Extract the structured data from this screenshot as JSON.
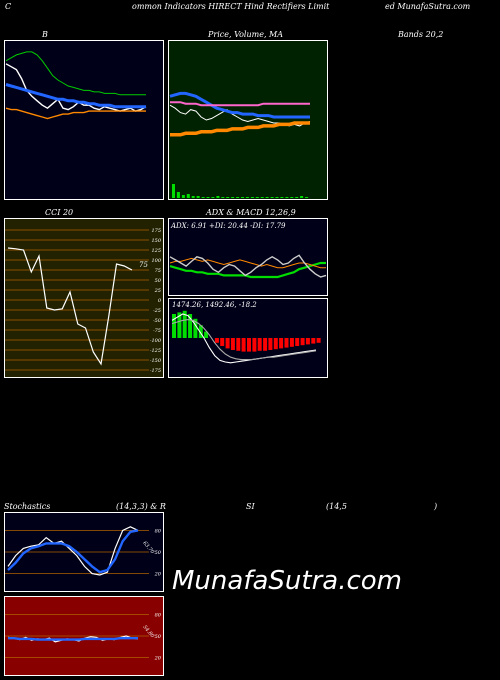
{
  "header": {
    "left": "C",
    "center": "ommon  Indicators HIRECT Hind Rectifiers Limit",
    "right": "ed MunafaSutra.com"
  },
  "watermark": "MunafaSutra.com",
  "colors": {
    "panel_dark": "#000018",
    "panel_green": "#002200",
    "panel_olive": "#222200",
    "panel_red": "#880000",
    "grid_orange": "#b06000",
    "white": "#ffffff",
    "blue": "#2266ff",
    "green": "#00dd00",
    "orange": "#ff8800",
    "pink": "#ff66cc"
  },
  "chart_data": [
    {
      "id": "bollinger",
      "type": "line",
      "title": "B",
      "right_title": "Bands 20,2",
      "series": [
        {
          "color": "#ffffff",
          "values": [
            88,
            86,
            84,
            78,
            70,
            66,
            63,
            60,
            58,
            61,
            64,
            58,
            57,
            59,
            62,
            60,
            60,
            58,
            57,
            59,
            58,
            57,
            56,
            57,
            58,
            56,
            57,
            59
          ]
        },
        {
          "color": "#2266ff",
          "values": [
            74,
            73,
            72,
            71,
            70,
            69,
            68,
            67,
            66,
            65,
            64,
            64,
            63,
            63,
            62,
            62,
            61,
            61,
            60,
            60,
            60,
            59,
            59,
            59,
            59,
            59,
            59,
            59
          ]
        },
        {
          "color": "#00cc00",
          "values": [
            90,
            92,
            94,
            95,
            96,
            96,
            94,
            90,
            85,
            80,
            77,
            75,
            73,
            72,
            71,
            70,
            70,
            69,
            69,
            68,
            68,
            68,
            67,
            67,
            67,
            67,
            67,
            67
          ]
        },
        {
          "color": "#ff8800",
          "values": [
            58,
            57,
            57,
            56,
            55,
            54,
            53,
            52,
            51,
            52,
            53,
            54,
            54,
            55,
            55,
            55,
            56,
            56,
            56,
            56,
            56,
            56,
            56,
            56,
            56,
            56,
            56,
            56
          ]
        }
      ]
    },
    {
      "id": "price_ma",
      "type": "line",
      "title": "Price,  Volume,  MA",
      "subtitle": "Volume",
      "series": [
        {
          "color": "#ffffff",
          "values": [
            60,
            58,
            55,
            54,
            57,
            56,
            52,
            50,
            51,
            53,
            55,
            57,
            54,
            52,
            50,
            49,
            50,
            51,
            50,
            49,
            48,
            48,
            47,
            46,
            47,
            46,
            48,
            49
          ]
        },
        {
          "color": "#2266ff",
          "values": [
            66,
            67,
            68,
            68,
            67,
            66,
            64,
            62,
            60,
            58,
            57,
            56,
            55,
            55,
            54,
            54,
            54,
            53,
            53,
            53,
            52,
            52,
            52,
            52,
            52,
            52,
            52,
            52
          ]
        },
        {
          "color": "#ff66cc",
          "values": [
            62,
            62,
            62,
            61,
            61,
            61,
            60,
            60,
            60,
            60,
            60,
            60,
            60,
            60,
            60,
            60,
            60,
            60,
            61,
            61,
            61,
            61,
            61,
            61,
            61,
            61,
            61,
            61
          ]
        },
        {
          "color": "#ff8800",
          "values": [
            40,
            40,
            40,
            41,
            41,
            41,
            42,
            42,
            42,
            43,
            43,
            43,
            44,
            44,
            44,
            45,
            45,
            45,
            46,
            46,
            46,
            47,
            47,
            47,
            48,
            48,
            48,
            48
          ]
        }
      ],
      "volume": [
        14,
        6,
        3,
        4,
        2,
        2,
        1,
        1,
        1,
        2,
        1,
        1,
        1,
        1,
        1,
        1,
        1,
        1,
        1,
        1,
        1,
        1,
        1,
        1,
        1,
        1,
        2,
        1
      ]
    },
    {
      "id": "cci",
      "type": "line",
      "title": "CCI 20",
      "last_value_label": "75",
      "ticks": [
        "175",
        "150",
        "125",
        "100",
        "75",
        "50",
        "25",
        "0",
        "-25",
        "-50",
        "-75",
        "-100",
        "-125",
        "-150",
        "-175"
      ],
      "ylim": [
        -175,
        175
      ],
      "values": [
        130,
        128,
        125,
        70,
        110,
        -20,
        -25,
        -22,
        20,
        -60,
        -70,
        -130,
        -160,
        -40,
        90,
        85,
        75
      ]
    },
    {
      "id": "adx",
      "type": "line",
      "title": "ADX  & MACD 12,26,9",
      "label": "ADX: 6.91  +DI: 20.44  -DI: 17.79",
      "series": [
        {
          "color": "#00dd00",
          "values": [
            18,
            17,
            16,
            15,
            15,
            14,
            14,
            13,
            13,
            13,
            12,
            12,
            12,
            12,
            12,
            11,
            11,
            11,
            11,
            11,
            11,
            12,
            13,
            14,
            16,
            17,
            18,
            19,
            20,
            20
          ]
        },
        {
          "color": "#ff8800",
          "values": [
            20,
            21,
            21,
            22,
            23,
            22,
            21,
            22,
            21,
            20,
            19,
            20,
            21,
            22,
            21,
            20,
            19,
            18,
            19,
            18,
            17,
            17,
            18,
            19,
            20,
            20,
            19,
            18,
            17,
            17
          ]
        },
        {
          "color": "#cccccc",
          "values": [
            24,
            22,
            20,
            18,
            21,
            24,
            23,
            20,
            16,
            14,
            17,
            19,
            18,
            15,
            12,
            14,
            17,
            19,
            22,
            24,
            22,
            19,
            20,
            23,
            25,
            20,
            16,
            13,
            11,
            12
          ]
        }
      ]
    },
    {
      "id": "macd",
      "type": "bar",
      "label": "1474.26,   1492.46,   -18.2",
      "histogram": [
        30,
        32,
        34,
        30,
        24,
        16,
        8,
        0,
        -6,
        -10,
        -13,
        -15,
        -16,
        -17,
        -17,
        -17,
        -16,
        -16,
        -15,
        -14,
        -13,
        -12,
        -11,
        -10,
        -9,
        -8,
        -7,
        -6
      ],
      "series": [
        {
          "color": "#ffffff",
          "values": [
            22,
            26,
            30,
            28,
            20,
            10,
            0,
            -12,
            -22,
            -28,
            -30,
            -31,
            -30,
            -29,
            -28,
            -27,
            -26,
            -25,
            -24,
            -23,
            -22,
            -21,
            -20,
            -19,
            -18,
            -17,
            -16,
            -15
          ]
        },
        {
          "color": "#aaaaaa",
          "values": [
            18,
            20,
            22,
            23,
            22,
            18,
            12,
            4,
            -6,
            -14,
            -20,
            -24,
            -26,
            -27,
            -27,
            -27,
            -26,
            -25,
            -24,
            -24,
            -23,
            -22,
            -21,
            -20,
            -19,
            -18,
            -17,
            -16
          ]
        }
      ]
    },
    {
      "id": "stochastics",
      "type": "line",
      "title": "Stochastics",
      "params": "(14,3,3) & R",
      "ticks": [
        "80",
        "50",
        "20"
      ],
      "value_label": "63.70",
      "ylim": [
        0,
        100
      ],
      "series": [
        {
          "color": "#ffffff",
          "values": [
            30,
            45,
            55,
            58,
            60,
            70,
            62,
            65,
            55,
            45,
            30,
            20,
            18,
            22,
            55,
            80,
            85,
            80
          ]
        },
        {
          "color": "#2266ff",
          "values": [
            25,
            35,
            48,
            55,
            58,
            62,
            62,
            62,
            58,
            50,
            40,
            30,
            22,
            25,
            40,
            65,
            78,
            80
          ]
        }
      ]
    },
    {
      "id": "rsi",
      "type": "line",
      "title": "SI",
      "params": "(14,5",
      "close": ")",
      "ticks": [
        "80",
        "50",
        "20"
      ],
      "value_label": "54.80",
      "ylim": [
        0,
        100
      ],
      "series": [
        {
          "color": "#ffffff",
          "values": [
            48,
            47,
            45,
            48,
            44,
            46,
            45,
            47,
            42,
            44,
            46,
            45,
            43,
            47,
            49,
            48,
            44,
            46,
            45,
            48,
            50,
            47,
            46
          ]
        },
        {
          "color": "#2266ff",
          "values": [
            47,
            47,
            46,
            46,
            46,
            45,
            45,
            45,
            45,
            45,
            45,
            45,
            45,
            46,
            46,
            46,
            46,
            46,
            46,
            47,
            47,
            47,
            47
          ]
        }
      ]
    }
  ]
}
